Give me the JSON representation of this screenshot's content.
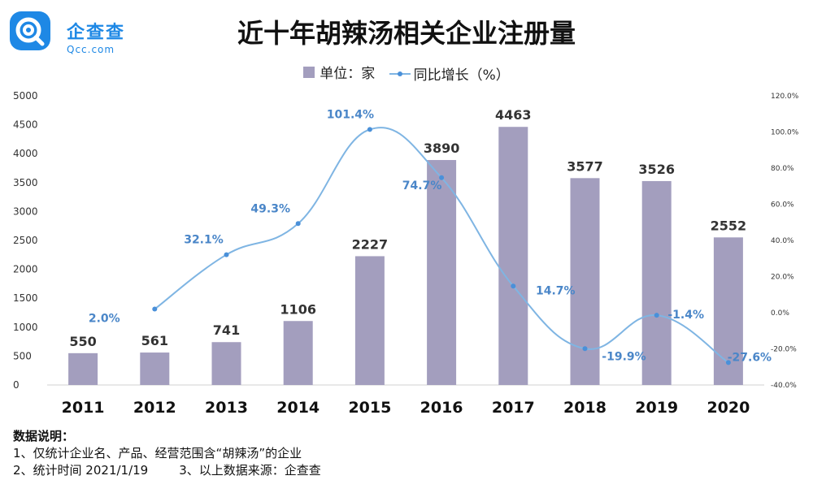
{
  "logo": {
    "name": "企查查",
    "domain": "Qcc.com"
  },
  "title": "近十年胡辣汤相关企业注册量",
  "legend": {
    "bar_label": "单位：家",
    "line_label": "同比增长（%）"
  },
  "colors": {
    "bar": "#a39ebe",
    "line": "#7fb5e3",
    "marker": "#4a90d9",
    "line_label": "#4a86c8",
    "logo": "#1e88e5"
  },
  "notes": {
    "heading": "数据说明：",
    "line1": "1、仅统计企业名、产品、经营范围含“胡辣汤”的企业",
    "line2a": "2、统计时间 2021/1/19",
    "line2b": "3、以上数据来源：企查查"
  },
  "chart_data": {
    "type": "bar",
    "categories": [
      "2011",
      "2012",
      "2013",
      "2014",
      "2015",
      "2016",
      "2017",
      "2018",
      "2019",
      "2020"
    ],
    "series": [
      {
        "name": "单位：家",
        "type": "bar",
        "values": [
          550,
          561,
          741,
          1106,
          2227,
          3890,
          4463,
          3577,
          3526,
          2552
        ]
      },
      {
        "name": "同比增长（%）",
        "type": "line",
        "axis": "right",
        "values": [
          null,
          2.0,
          32.1,
          49.3,
          101.4,
          74.7,
          14.7,
          -19.9,
          -1.4,
          -27.6
        ],
        "labels": [
          "",
          "2.0%",
          "32.1%",
          "49.3%",
          "101.4%",
          "74.7%",
          "14.7%",
          "-19.9%",
          "-1.4%",
          "-27.6%"
        ]
      }
    ],
    "ylim": [
      0,
      5000
    ],
    "yticks": [
      "5000",
      "4500",
      "4000",
      "3500",
      "3000",
      "2500",
      "2000",
      "1500",
      "1000",
      "500",
      "0"
    ],
    "y2lim": [
      -40,
      120
    ],
    "y2ticks": [
      "120.0%",
      "100.0%",
      "80.0%",
      "60.0%",
      "40.0%",
      "20.0%",
      "0.0%",
      "-20.0%",
      "-40.0%"
    ],
    "legend_position": "top-center",
    "grid": false
  }
}
